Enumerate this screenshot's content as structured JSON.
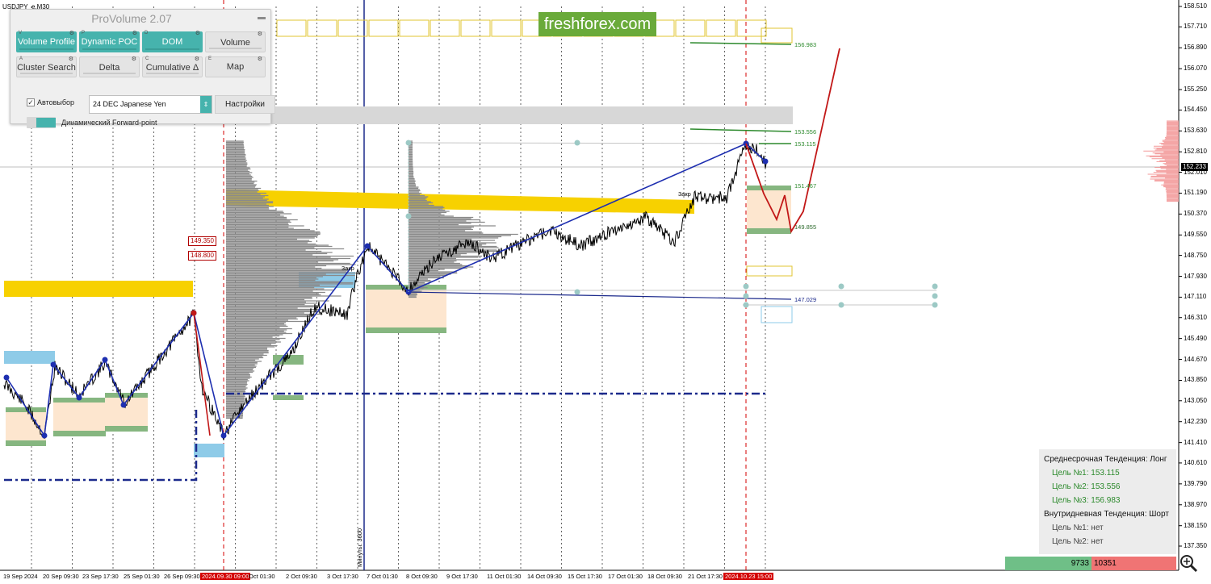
{
  "chart": {
    "symbol": "USDJPY_e,M30",
    "watermark": "freshforex.com",
    "current_price": "152.233",
    "price_axis": [
      "158.510",
      "157.710",
      "156.890",
      "156.070",
      "155.250",
      "154.450",
      "153.630",
      "152.810",
      "152.010",
      "151.190",
      "150.370",
      "149.550",
      "148.750",
      "147.930",
      "147.110",
      "146.310",
      "145.490",
      "144.670",
      "143.850",
      "143.050",
      "142.230",
      "141.410",
      "140.610",
      "139.790",
      "138.970",
      "138.150",
      "137.350"
    ],
    "time_axis": [
      "19 Sep 2024",
      "20 Sep 09:30",
      "23 Sep 17:30",
      "25 Sep 01:30",
      "26 Sep 09:30",
      "2024.09.30 09:00",
      "Oct 01:30",
      "2 Oct 09:30",
      "3 Oct 17:30",
      "7 Oct 01:30",
      "8 Oct 09:30",
      "9 Oct 17:30",
      "11 Oct 01:30",
      "14 Oct 09:30",
      "15 Oct 17:30",
      "17 Oct 01:30",
      "18 Oct 09:30",
      "21 Oct 17:30",
      "2024.10.23 15:00"
    ],
    "time_highlight": [
      "2024.09.30 09:00",
      "2024.10.23 15:00"
    ],
    "levels": {
      "l1": "156.983",
      "l2": "153.556",
      "l3": "153.115",
      "l4": "151.467",
      "l5": "149.855",
      "l6": "147.029"
    },
    "boxed_prices": [
      "149.350",
      "148.800"
    ],
    "annotation_1": "3акр",
    "annotation_2": "3акр",
    "vertical_label": "Минуты: 3600",
    "colors": {
      "gold": "#f7d100",
      "sky": "#8ecbe8",
      "peach": "#fde6cf",
      "green_band": "#86b680",
      "navy": "#1c2a8c",
      "zigzag": "#1e2fb0",
      "red": "#c21818",
      "profile": "#8a8a8a"
    }
  },
  "panel": {
    "title": "ProVolume 2.07",
    "buttons": [
      {
        "hotkey": "V",
        "label": "Volume Profile",
        "state": "on"
      },
      {
        "hotkey": "P",
        "label": "Dynamic POC",
        "state": "on"
      },
      {
        "hotkey": "D",
        "label": "DOM",
        "state": "on"
      },
      {
        "hotkey": "",
        "label": "Volume",
        "state": "off"
      },
      {
        "hotkey": "A",
        "label": "Cluster Search",
        "state": "off"
      },
      {
        "hotkey": "",
        "label": "Delta",
        "state": "off"
      },
      {
        "hotkey": "C",
        "label": "Cumulative Δ",
        "state": "off"
      },
      {
        "hotkey": "E",
        "label": "Map",
        "state": "plain"
      }
    ],
    "auto_select_label": "Автовыбор",
    "auto_select_checked": "✓",
    "instrument": "24 DEC Japanese Yen",
    "settings_label": "Настройки",
    "forward_point_label": "Динамический Forward-point"
  },
  "trend_panel": {
    "mid_title": "Среднесрочная Тенденция: Лонг",
    "target1": "Цель №1: 153.115",
    "target2": "Цель №2: 153.556",
    "target3": "Цель №3: 156.983",
    "intraday_title": "Внутридневная Тенденция: Шорт",
    "intraday1": "Цель №1: нет",
    "intraday2": "Цель №2: нет",
    "buy_volume": "9733",
    "sell_volume": "10351"
  }
}
